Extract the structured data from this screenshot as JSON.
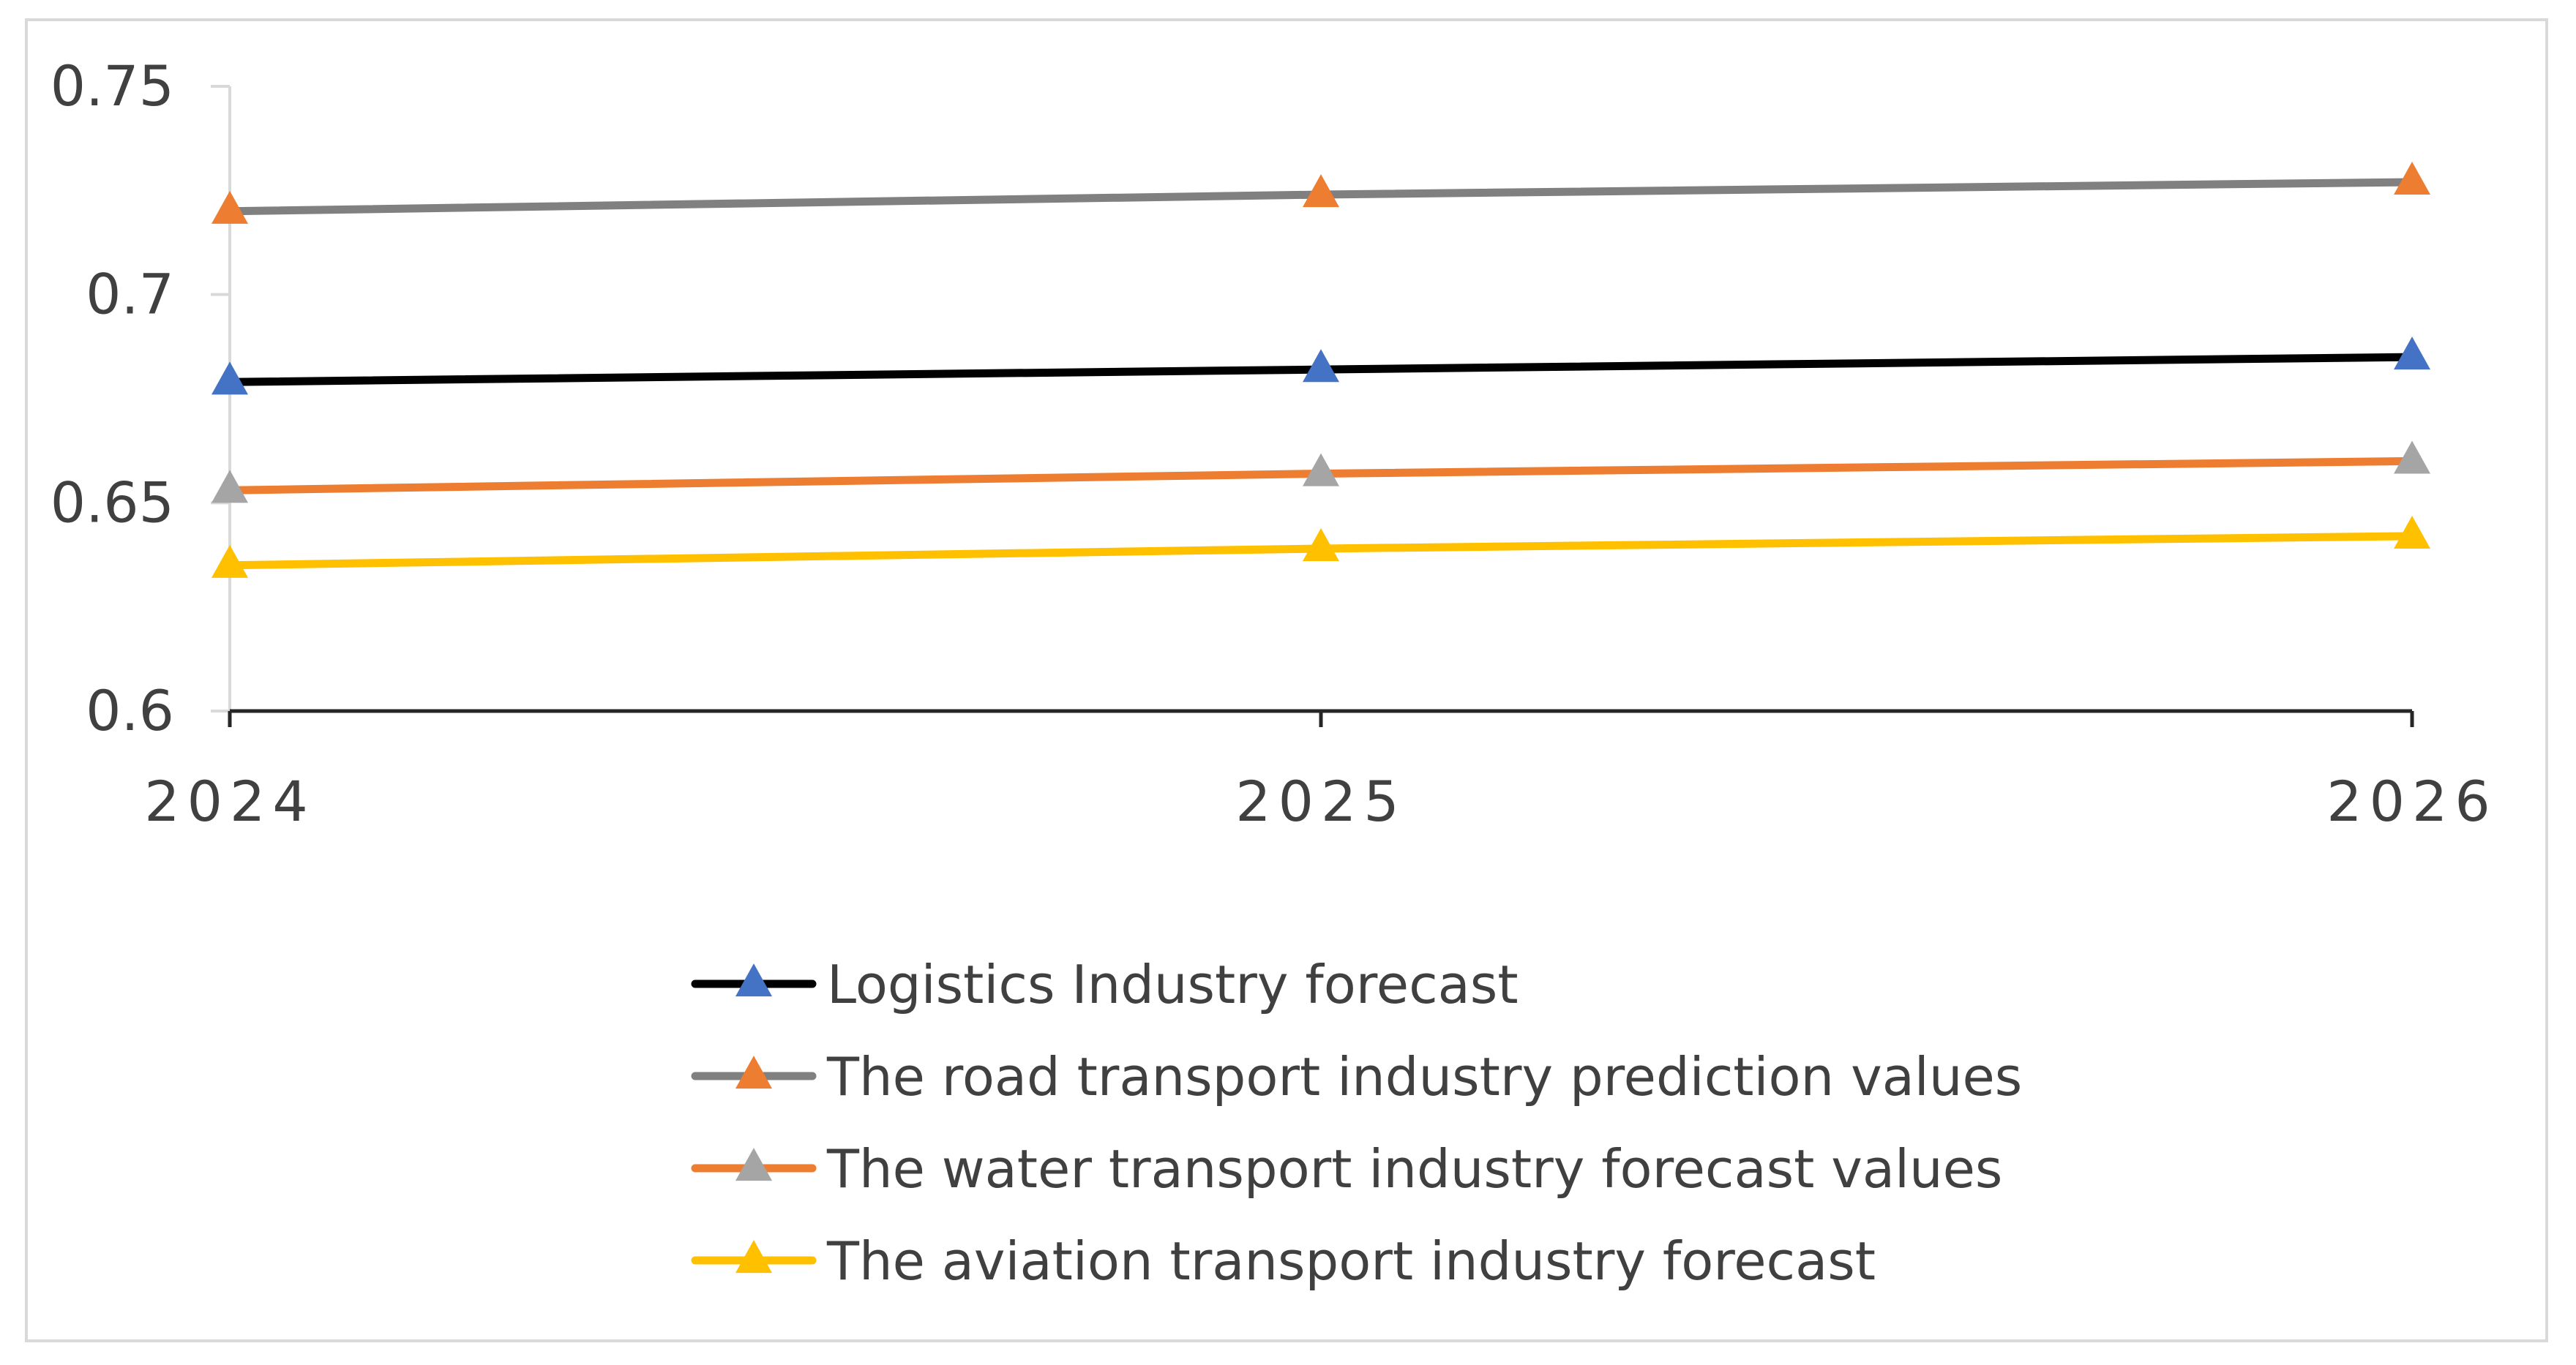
{
  "chart_data": {
    "type": "line",
    "title": "",
    "xlabel": "",
    "ylabel": "",
    "categories": [
      "2024",
      "2025",
      "2026"
    ],
    "ylim": [
      0.6,
      0.75
    ],
    "yticks": [
      0.6,
      0.65,
      0.7,
      0.75
    ],
    "ytick_labels": [
      "0.6",
      "0.65",
      "0.7",
      "0.75"
    ],
    "grid": false,
    "legend_position": "bottom",
    "series": [
      {
        "name": "Logistics Industry forecast",
        "values": [
          0.679,
          0.682,
          0.685
        ],
        "line_color": "#000000",
        "marker_color": "#4472C4",
        "marker": "triangle"
      },
      {
        "name": "The road transport industry prediction values",
        "values": [
          0.72,
          0.724,
          0.727
        ],
        "line_color": "#808080",
        "marker_color": "#ED7D31",
        "marker": "triangle"
      },
      {
        "name": "The water transport industry forecast values",
        "values": [
          0.653,
          0.657,
          0.66
        ],
        "line_color": "#ED7D31",
        "marker_color": "#A5A5A5",
        "marker": "triangle"
      },
      {
        "name": "The aviation transport industry forecast",
        "values": [
          0.635,
          0.639,
          0.642
        ],
        "line_color": "#FFC000",
        "marker_color": "#FFC000",
        "marker": "triangle"
      }
    ]
  }
}
